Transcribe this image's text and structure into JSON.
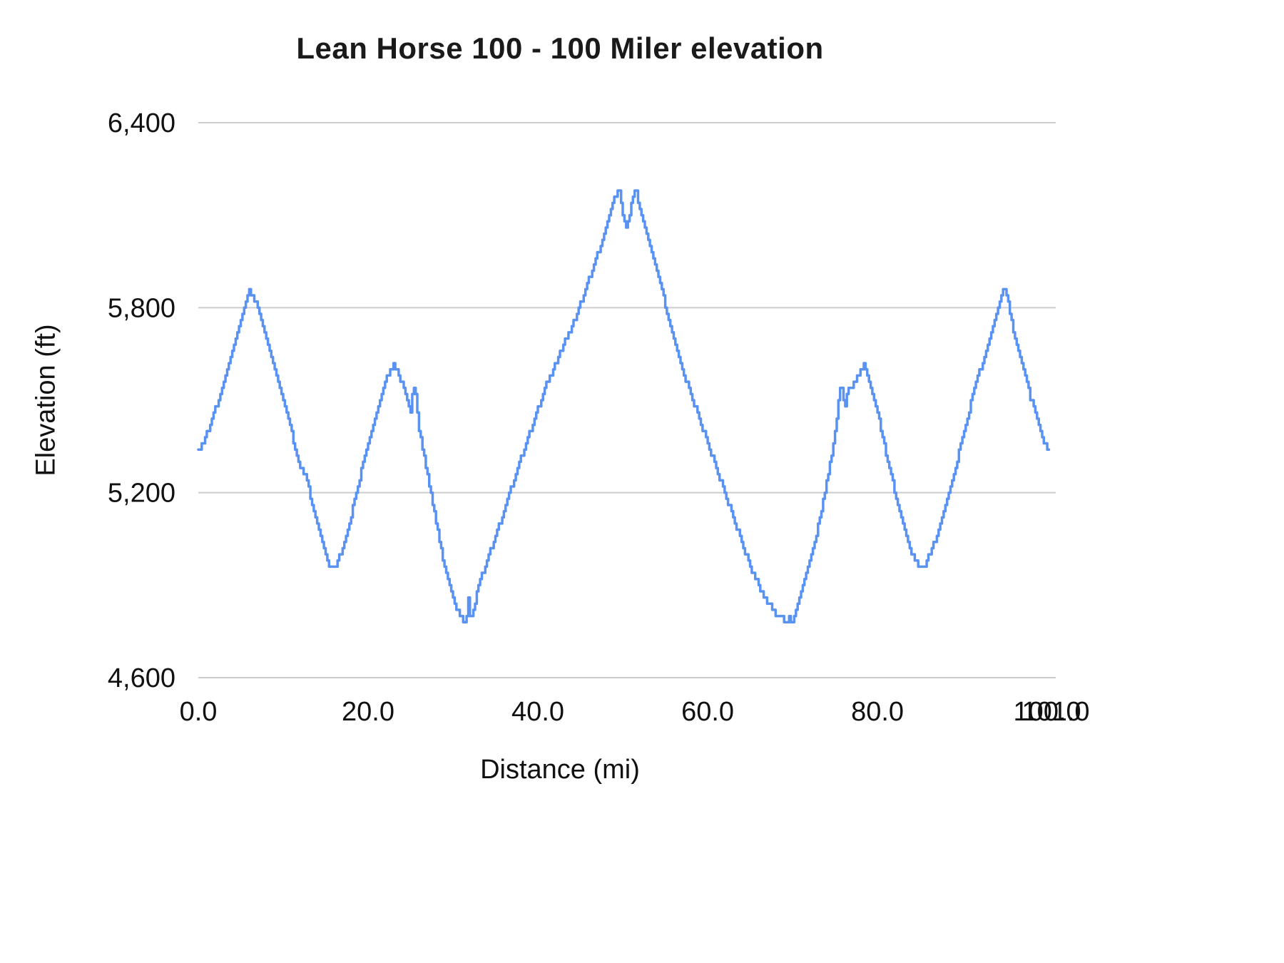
{
  "chart_data": {
    "type": "line",
    "title": "Lean Horse 100 - 100 Miler elevation",
    "xlabel": "Distance (mi)",
    "ylabel": "Elevation (ft)",
    "xlim": [
      0,
      101
    ],
    "ylim": [
      4600,
      6400
    ],
    "grid": "horizontal",
    "legend_position": "none",
    "line_color": "#5a92f2",
    "grid_color": "#cccccc",
    "label_color": "#111111",
    "x_ticks": [
      {
        "value": 0,
        "label": "0.0"
      },
      {
        "value": 20,
        "label": "20.0"
      },
      {
        "value": 40,
        "label": "40.0"
      },
      {
        "value": 60,
        "label": "60.0"
      },
      {
        "value": 80,
        "label": "80.0"
      },
      {
        "value": 100,
        "label": "100.0"
      },
      {
        "value": 101,
        "label": "101.0"
      }
    ],
    "y_ticks": [
      {
        "value": 4600,
        "label": "4,600"
      },
      {
        "value": 5200,
        "label": "5,200"
      },
      {
        "value": 5800,
        "label": "5,800"
      },
      {
        "value": 6400,
        "label": "6,400"
      }
    ],
    "series": [
      {
        "name": "Elevation",
        "points": [
          [
            0,
            5330
          ],
          [
            1,
            5390
          ],
          [
            2,
            5470
          ],
          [
            3,
            5560
          ],
          [
            4,
            5650
          ],
          [
            5,
            5760
          ],
          [
            6,
            5860
          ],
          [
            7,
            5800
          ],
          [
            8,
            5700
          ],
          [
            9,
            5600
          ],
          [
            10,
            5490
          ],
          [
            11,
            5390
          ],
          [
            11.5,
            5320
          ],
          [
            12,
            5280
          ],
          [
            12.5,
            5260
          ],
          [
            13,
            5210
          ],
          [
            14,
            5100
          ],
          [
            15,
            5000
          ],
          [
            15.5,
            4960
          ],
          [
            16,
            4950
          ],
          [
            17,
            5020
          ],
          [
            18,
            5130
          ],
          [
            19,
            5250
          ],
          [
            20,
            5360
          ],
          [
            21,
            5470
          ],
          [
            22,
            5560
          ],
          [
            23,
            5620
          ],
          [
            23.5,
            5590
          ],
          [
            24,
            5550
          ],
          [
            24.5,
            5500
          ],
          [
            25,
            5460
          ],
          [
            25.3,
            5560
          ],
          [
            25.6,
            5520
          ],
          [
            26,
            5400
          ],
          [
            27,
            5250
          ],
          [
            28,
            5100
          ],
          [
            29,
            4950
          ],
          [
            30,
            4850
          ],
          [
            31,
            4790
          ],
          [
            31.5,
            4770
          ],
          [
            31.8,
            4860
          ],
          [
            32.1,
            4780
          ],
          [
            33,
            4900
          ],
          [
            34,
            4980
          ],
          [
            35,
            5060
          ],
          [
            36,
            5140
          ],
          [
            37,
            5230
          ],
          [
            38,
            5310
          ],
          [
            39,
            5390
          ],
          [
            40,
            5470
          ],
          [
            41,
            5550
          ],
          [
            42,
            5610
          ],
          [
            43,
            5680
          ],
          [
            44,
            5740
          ],
          [
            45,
            5810
          ],
          [
            46,
            5890
          ],
          [
            47,
            5970
          ],
          [
            48,
            6060
          ],
          [
            49,
            6150
          ],
          [
            49.5,
            6190
          ],
          [
            50,
            6100
          ],
          [
            50.5,
            6060
          ],
          [
            51,
            6130
          ],
          [
            51.5,
            6190
          ],
          [
            52,
            6120
          ],
          [
            53,
            6020
          ],
          [
            54,
            5920
          ],
          [
            55,
            5810
          ],
          [
            56,
            5700
          ],
          [
            57,
            5600
          ],
          [
            58,
            5520
          ],
          [
            59,
            5440
          ],
          [
            60,
            5360
          ],
          [
            61,
            5280
          ],
          [
            62,
            5200
          ],
          [
            63,
            5120
          ],
          [
            64,
            5040
          ],
          [
            65,
            4960
          ],
          [
            66,
            4900
          ],
          [
            67,
            4850
          ],
          [
            68,
            4810
          ],
          [
            69,
            4790
          ],
          [
            69.3,
            4770
          ],
          [
            69.6,
            4800
          ],
          [
            69.9,
            4775
          ],
          [
            70.2,
            4800
          ],
          [
            71,
            4880
          ],
          [
            72,
            4980
          ],
          [
            73,
            5090
          ],
          [
            74,
            5230
          ],
          [
            75,
            5390
          ],
          [
            75.5,
            5520
          ],
          [
            75.8,
            5550
          ],
          [
            76.1,
            5470
          ],
          [
            76.5,
            5540
          ],
          [
            77,
            5540
          ],
          [
            77.5,
            5570
          ],
          [
            78,
            5600
          ],
          [
            78.5,
            5620
          ],
          [
            79,
            5570
          ],
          [
            80,
            5460
          ],
          [
            81,
            5330
          ],
          [
            82,
            5210
          ],
          [
            83,
            5100
          ],
          [
            84,
            5010
          ],
          [
            85,
            4960
          ],
          [
            85.5,
            4950
          ],
          [
            86,
            4990
          ],
          [
            87,
            5060
          ],
          [
            88,
            5150
          ],
          [
            89,
            5260
          ],
          [
            90,
            5380
          ],
          [
            91,
            5490
          ],
          [
            92,
            5590
          ],
          [
            93,
            5680
          ],
          [
            94,
            5780
          ],
          [
            94.5,
            5840
          ],
          [
            95,
            5860
          ],
          [
            95.5,
            5800
          ],
          [
            96,
            5720
          ],
          [
            97,
            5620
          ],
          [
            98,
            5510
          ],
          [
            99,
            5420
          ],
          [
            99.5,
            5370
          ],
          [
            100.3,
            5330
          ]
        ]
      }
    ]
  }
}
